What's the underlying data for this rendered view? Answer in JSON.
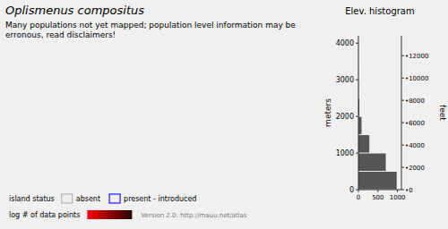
{
  "chart_data": {
    "type": "histogram",
    "orientation": "horizontal",
    "title": "Oplismenus compositus",
    "subtitle": "Many populations not yet mapped; population level information may be erronous, read disclaimers!",
    "annotations": [
      "Elev. histogram",
      "island status",
      "absent",
      "present - introduced",
      "log # of data points",
      "Version 2.0: http://mauu.net/atlas"
    ],
    "bins": [
      0,
      500,
      1000,
      1500,
      2000,
      2500,
      3000,
      3500,
      4000
    ],
    "values": [
      980,
      700,
      280,
      80,
      25,
      8,
      3,
      1
    ],
    "color": "#555555",
    "ylabel": "meters",
    "y2label": "feet",
    "xlim": [
      0,
      1100
    ],
    "xticks": [
      0,
      500,
      1000
    ],
    "ylim": [
      0,
      4200
    ],
    "yticks": [
      0,
      1000,
      2000,
      3000,
      4000
    ],
    "y2lim": [
      0,
      13779.527559055117
    ],
    "y2ticks": [
      {
        "value": 0,
        "label": "•0"
      },
      {
        "value": 2000,
        "label": "•2000"
      },
      {
        "value": 4000,
        "label": "•4000"
      },
      {
        "value": 6000,
        "label": "•6000"
      },
      {
        "value": 8000,
        "label": "•8000"
      },
      {
        "value": 10000,
        "label": "•10000"
      },
      {
        "value": 12000,
        "label": "•12000"
      }
    ],
    "grid": false
  }
}
